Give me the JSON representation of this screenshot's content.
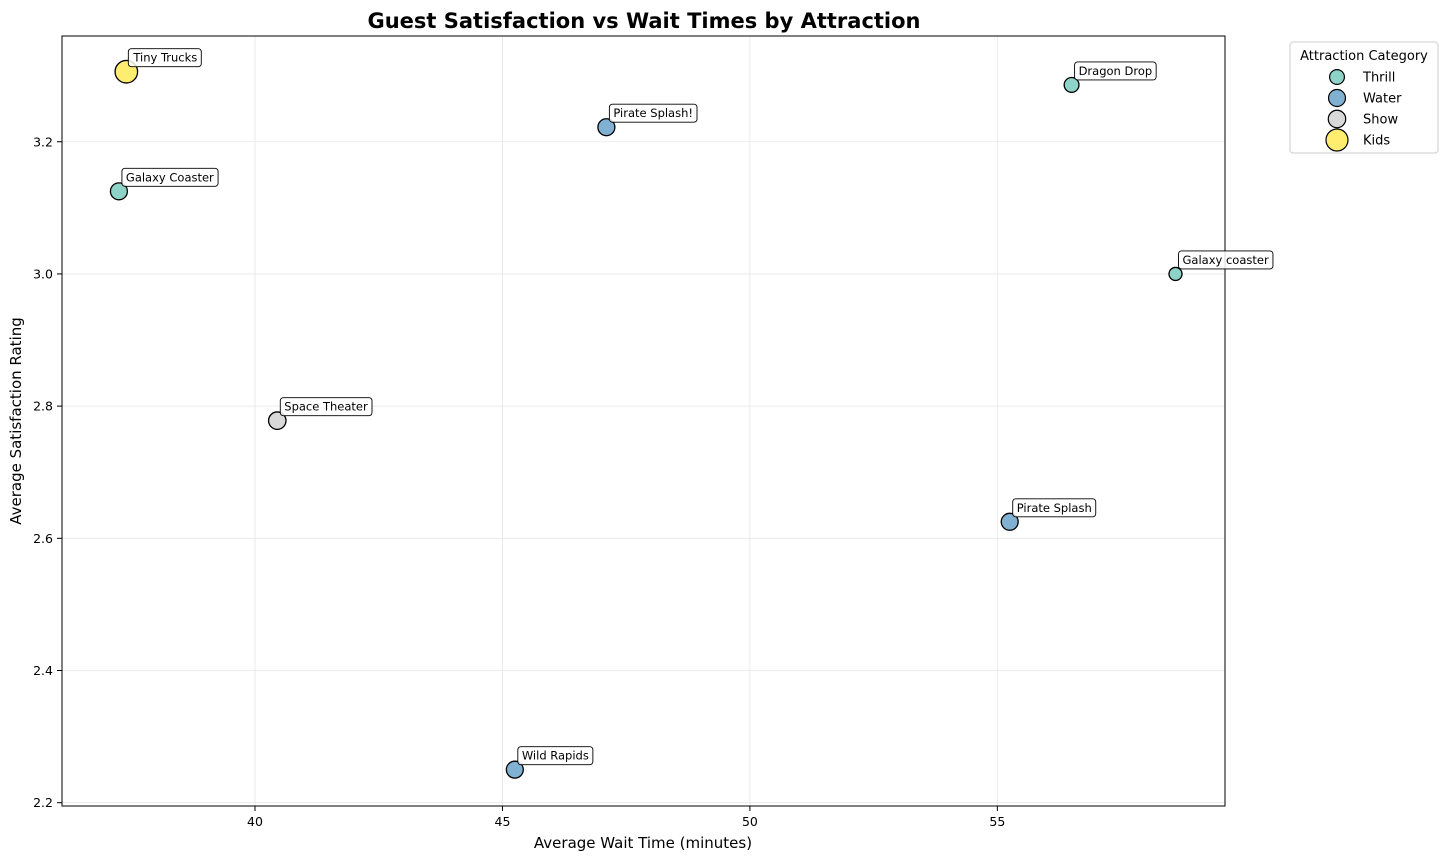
{
  "chart_data": {
    "type": "scatter",
    "title": "Guest Satisfaction vs Wait Times by Attraction",
    "xlabel": "Average Wait Time (minutes)",
    "ylabel": "Average Satisfaction Rating",
    "xlim": [
      36.1,
      59.6
    ],
    "ylim": [
      2.195,
      3.36
    ],
    "xticks": [
      40,
      45,
      50,
      55
    ],
    "yticks": [
      2.2,
      2.4,
      2.6,
      2.8,
      3.0,
      3.2
    ],
    "grid": true,
    "legend": {
      "title": "Attraction Category",
      "placement": "outside-top-right",
      "entries": [
        {
          "name": "Thrill",
          "color": "#8dd3c7"
        },
        {
          "name": "Water",
          "color": "#80b1d3"
        },
        {
          "name": "Show",
          "color": "#d9d9d9"
        },
        {
          "name": "Kids",
          "color": "#ffed6f"
        }
      ]
    },
    "points": [
      {
        "label": "Tiny Trucks",
        "category": "Kids",
        "x": 37.4,
        "y": 3.306,
        "size": 3.0
      },
      {
        "label": "Dragon Drop",
        "category": "Thrill",
        "x": 56.5,
        "y": 3.286,
        "size": 1.3
      },
      {
        "label": "Pirate Splash!",
        "category": "Water",
        "x": 47.1,
        "y": 3.222,
        "size": 1.7
      },
      {
        "label": "Galaxy Coaster",
        "category": "Thrill",
        "x": 37.25,
        "y": 3.125,
        "size": 1.7
      },
      {
        "label": "Galaxy coaster",
        "category": "Thrill",
        "x": 58.6,
        "y": 3.0,
        "size": 1.0
      },
      {
        "label": "Space Theater",
        "category": "Show",
        "x": 40.45,
        "y": 2.778,
        "size": 1.8
      },
      {
        "label": "Pirate Splash",
        "category": "Water",
        "x": 55.25,
        "y": 2.625,
        "size": 1.7
      },
      {
        "label": "Wild Rapids",
        "category": "Water",
        "x": 45.25,
        "y": 2.25,
        "size": 1.7
      }
    ]
  }
}
